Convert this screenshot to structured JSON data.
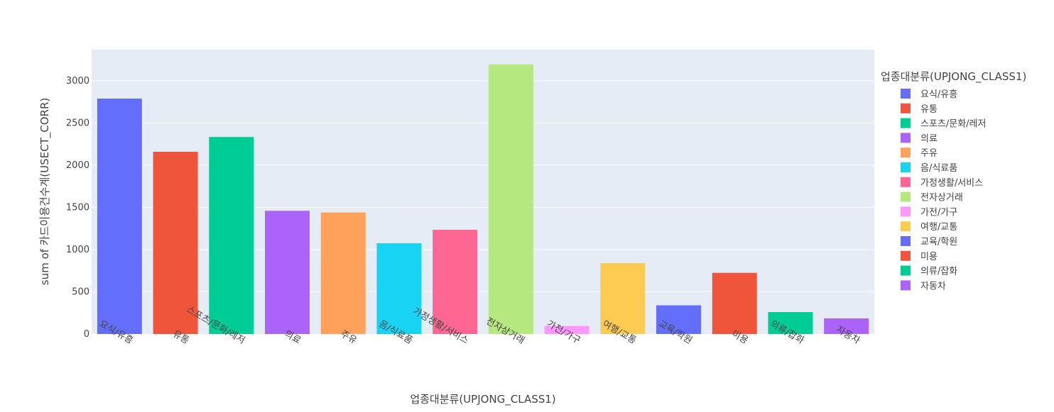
{
  "chart_data": {
    "type": "bar",
    "title": "",
    "xlabel": "업종대분류(UPJONG_CLASS1)",
    "ylabel": "sum of 카드이용건수계(USECT_CORR)",
    "ylim": [
      0,
      3370
    ],
    "yticks": [
      0,
      500,
      1000,
      1500,
      2000,
      2500,
      3000
    ],
    "ytick_labels": [
      "0",
      "500",
      "1000",
      "1500",
      "2000",
      "2500",
      "3000"
    ],
    "grid": true,
    "legend_title": "업종대분류(UPJONG_CLASS1)",
    "legend_position": "right",
    "categories": [
      "요식/유흥",
      "유통",
      "스포츠/문화/레저",
      "의료",
      "주유",
      "음/식료품",
      "가정생활/서비스",
      "전자상거래",
      "가전/가구",
      "여행/교통",
      "교육/학원",
      "미용",
      "의류/잡화",
      "자동차"
    ],
    "values": [
      2790,
      2160,
      2335,
      1460,
      1440,
      1075,
      1235,
      3195,
      95,
      840,
      340,
      725,
      260,
      185
    ],
    "colors": [
      "#636efa",
      "#EF553B",
      "#00cc96",
      "#ab63fa",
      "#FFA15A",
      "#19d3f3",
      "#FF6692",
      "#B6E880",
      "#FF97FF",
      "#FECB52",
      "#636efa",
      "#EF553B",
      "#00cc96",
      "#ab63fa"
    ],
    "plot_bg": "#E5ECF6",
    "grid_color": "#ffffff"
  }
}
